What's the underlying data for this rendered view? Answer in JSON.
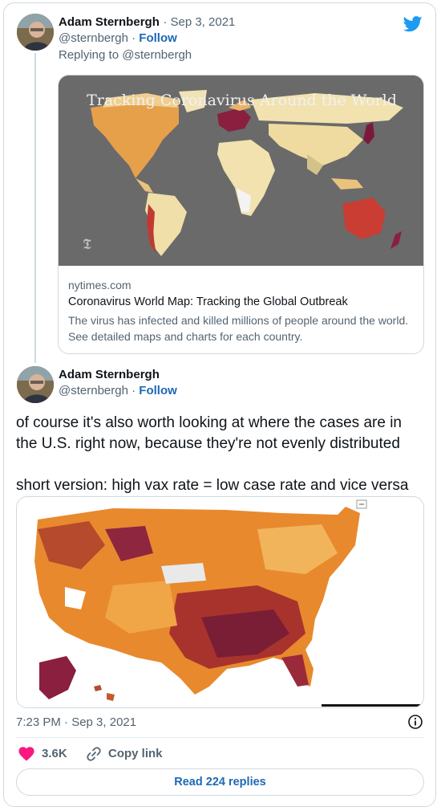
{
  "tweet1": {
    "name": "Adam Sternbergh",
    "date": "· Sep 3, 2021",
    "handle": "@sternbergh",
    "follow": "Follow",
    "replying_to": "Replying to @sternbergh",
    "link_card": {
      "image_title": "Tracking Coronavirus Around the World",
      "domain": "nytimes.com",
      "title": "Coronavirus World Map: Tracking the Global Outbreak",
      "description": "The virus has infected and killed millions of people around the world. See detailed maps and charts for each country."
    }
  },
  "tweet2": {
    "name": "Adam Sternbergh",
    "handle": "@sternbergh",
    "follow": "Follow",
    "text": "of course it's also worth looking at where the cases are in the U.S. right now, because they're not evenly distributed\n\nshort version: high vax rate = low case rate and vice versa",
    "timestamp": "7:23 PM · Sep 3, 2021"
  },
  "actions": {
    "likes": "3.6K",
    "copy_link": "Copy link",
    "read_replies": "Read 224 replies"
  },
  "icons": {
    "brand": "twitter-bird-icon",
    "info": "info-icon",
    "like": "heart-icon",
    "link": "link-icon"
  },
  "colors": {
    "brand_blue": "#1d9bf0",
    "link_blue": "#1d69b6",
    "heart": "#f91880"
  }
}
